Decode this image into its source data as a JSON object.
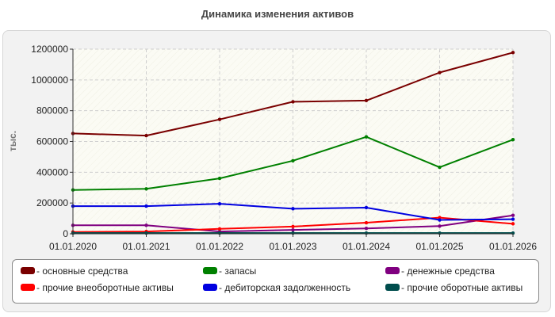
{
  "chart_data": {
    "type": "line",
    "title": "Динамика изменения активов",
    "ylabel": "тыс.",
    "xlabel": "",
    "x": [
      "01.01.2020",
      "01.01.2021",
      "01.01.2022",
      "01.01.2023",
      "01.01.2024",
      "01.01.2025",
      "01.01.2026"
    ],
    "ylim": [
      0,
      1200000
    ],
    "yticks": [
      0,
      200000,
      400000,
      600000,
      800000,
      1000000,
      1200000
    ],
    "ytick_labels": [
      "0",
      "200000",
      "400000",
      "600000",
      "800000",
      "1000000",
      "1200000"
    ],
    "grid": true,
    "legend_position": "bottom",
    "series": [
      {
        "name": "основные средства",
        "color": "#7a0000",
        "values": [
          652000,
          638000,
          743000,
          858000,
          866000,
          1048000,
          1178000
        ]
      },
      {
        "name": "запасы",
        "color": "#008000",
        "values": [
          285000,
          292000,
          360000,
          475000,
          630000,
          432000,
          612000
        ]
      },
      {
        "name": "денежные средства",
        "color": "#800080",
        "values": [
          55000,
          55000,
          15000,
          25000,
          35000,
          50000,
          120000
        ]
      },
      {
        "name": "прочие внеоборотные активы",
        "color": "#ff0000",
        "values": [
          12000,
          15000,
          32000,
          47000,
          72000,
          105000,
          65000
        ]
      },
      {
        "name": "дебиторская задолженность",
        "color": "#0000e0",
        "values": [
          180000,
          180000,
          195000,
          163000,
          170000,
          90000,
          95000
        ]
      },
      {
        "name": "прочие оборотные активы",
        "color": "#004d4d",
        "values": [
          5000,
          5000,
          5000,
          5000,
          5000,
          5000,
          5000
        ]
      }
    ]
  }
}
